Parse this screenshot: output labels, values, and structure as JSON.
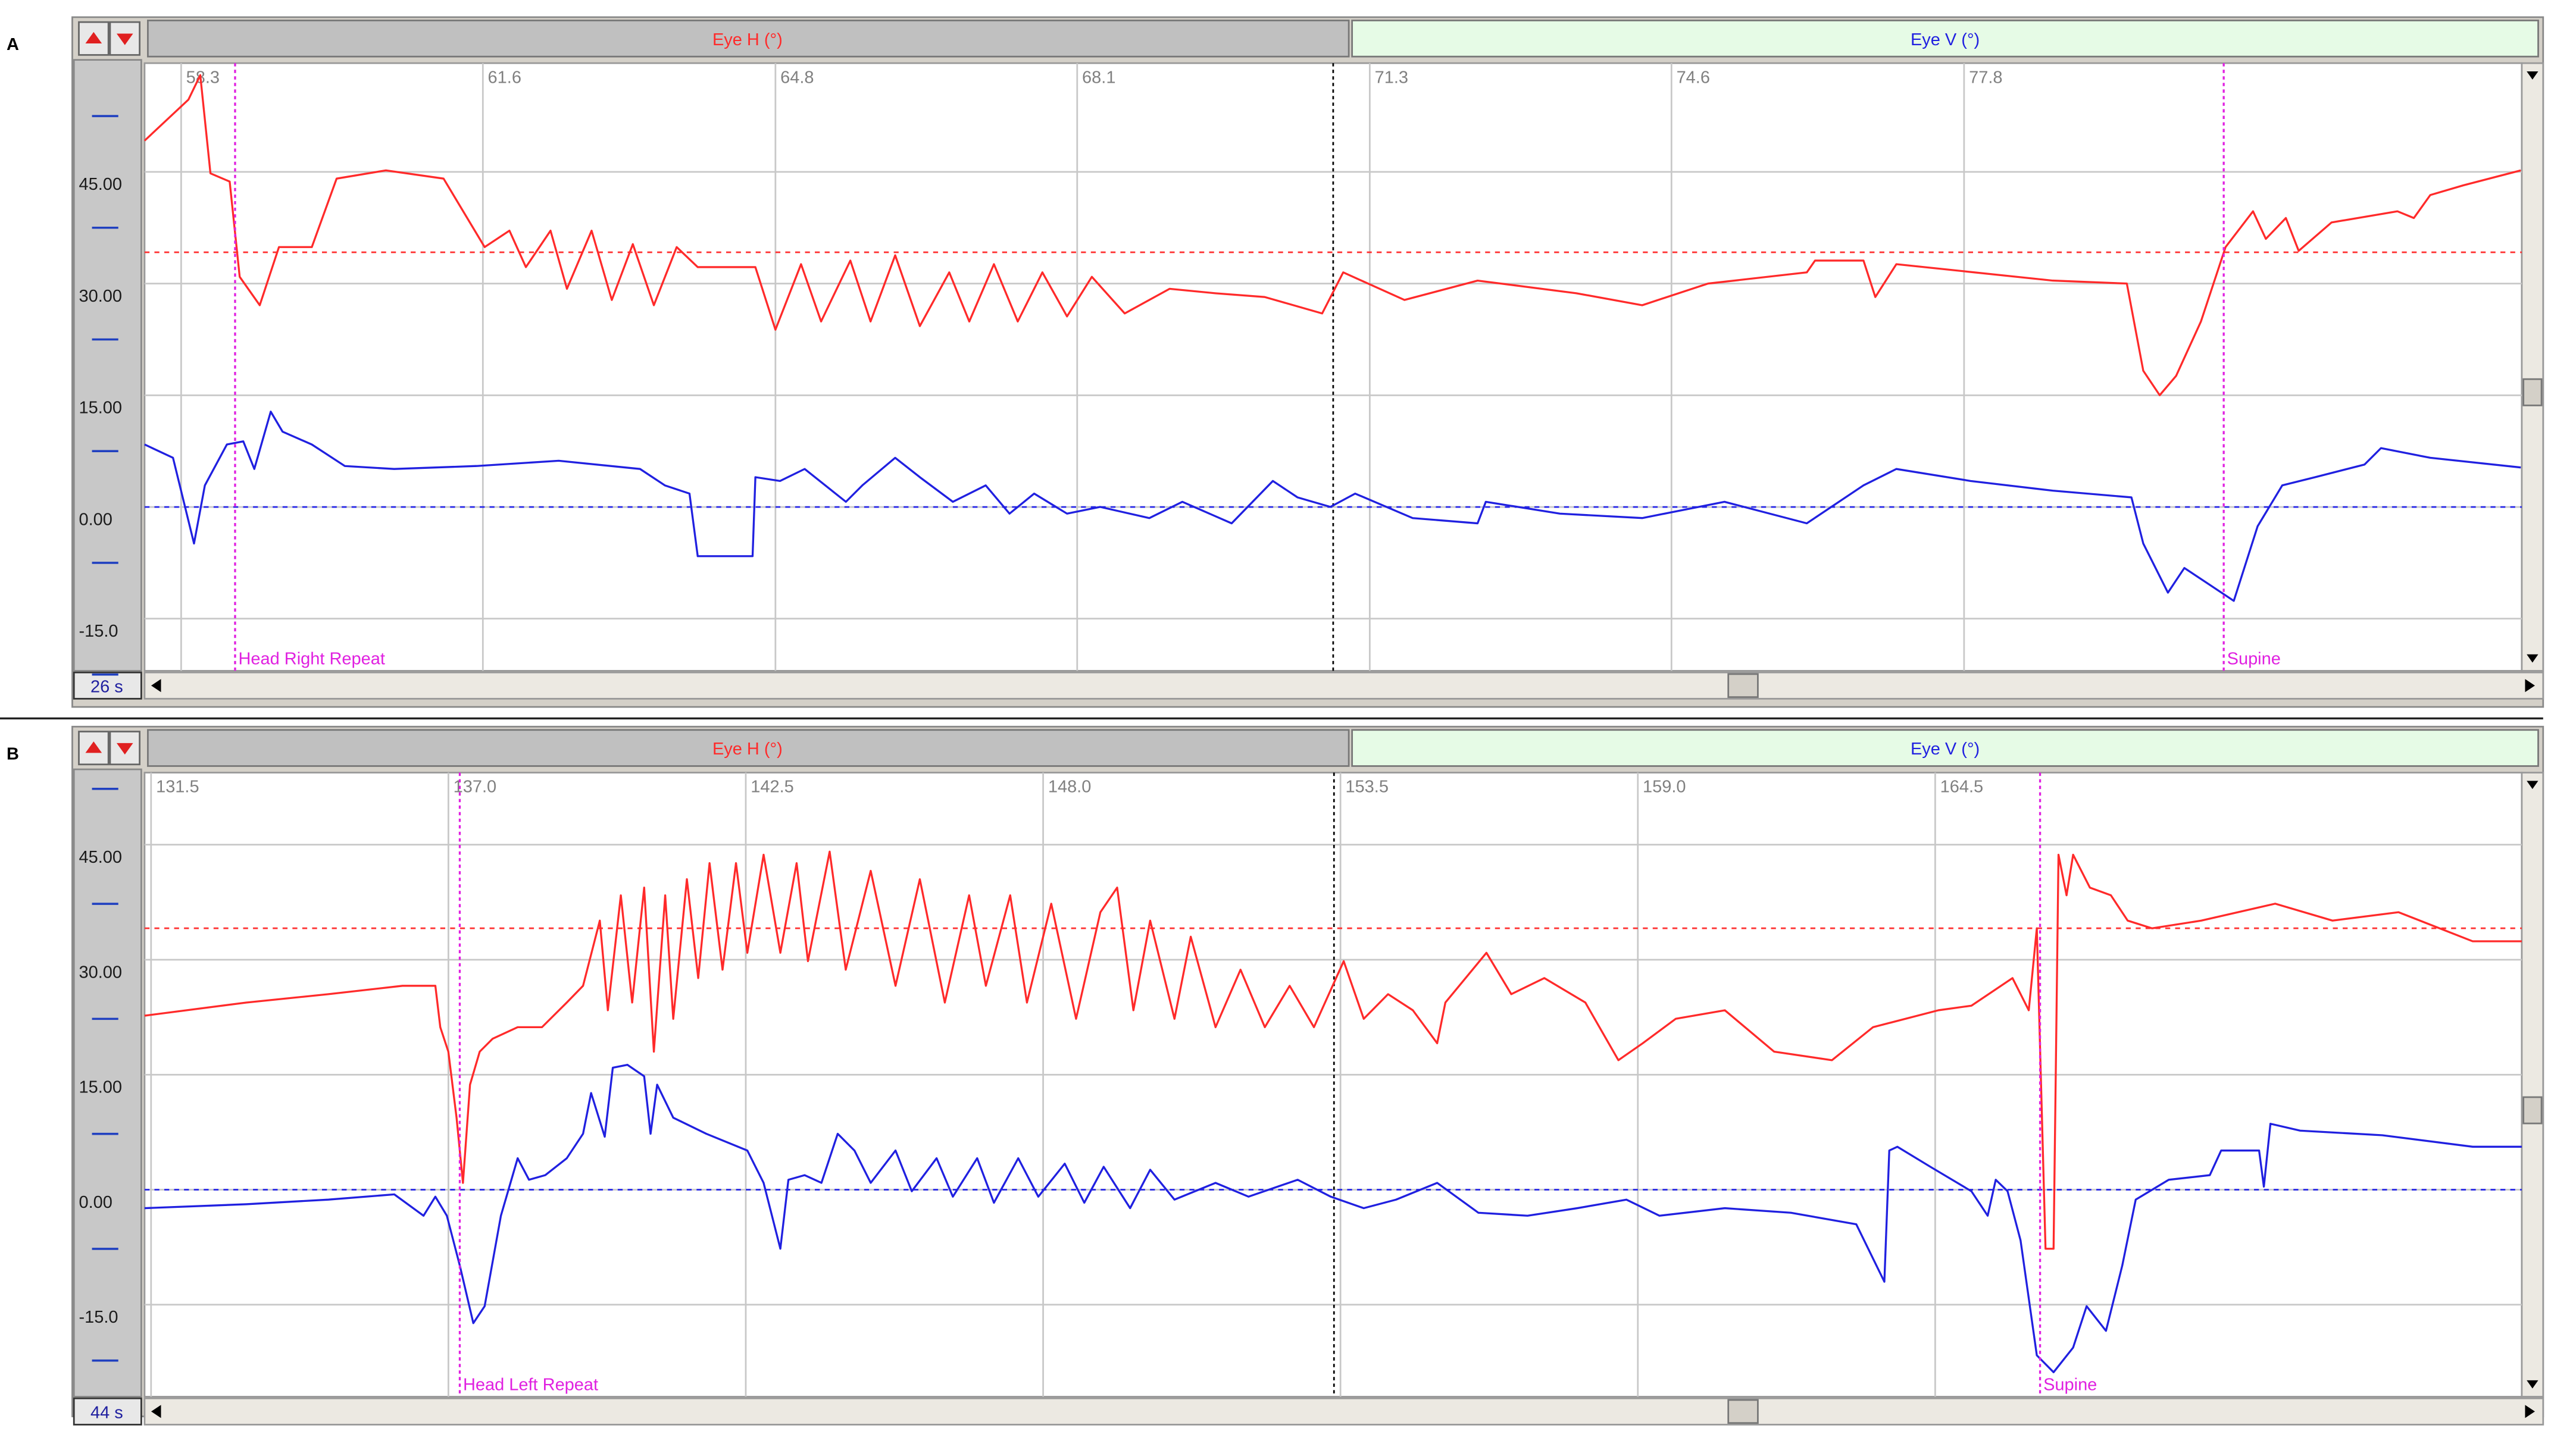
{
  "panels": [
    {
      "label": "A",
      "header": {
        "left": "Eye H (°)",
        "right": "Eye V (°)"
      },
      "duration": "26 s",
      "xlim": [
        57.9,
        83.9
      ],
      "ylim": [
        -22,
        59.6
      ],
      "xticks": [
        58.3,
        61.6,
        64.8,
        68.1,
        71.3,
        74.6,
        77.8
      ],
      "yticks": [
        {
          "value": 45,
          "label": "45.00"
        },
        {
          "value": 30,
          "label": "30.00"
        },
        {
          "value": 15,
          "label": "15.00"
        },
        {
          "value": 0,
          "label": "0.00"
        },
        {
          "value": -15,
          "label": "-15.0"
        }
      ],
      "grid": true,
      "cursor": 70.9,
      "markers": [
        {
          "x": 58.89,
          "label": "Head Right Repeat",
          "color": "#e020e0"
        },
        {
          "x": 80.64,
          "label": "Supine",
          "color": "#e020e0"
        }
      ],
      "references": [
        {
          "value": 34.2,
          "color": "#ff3030"
        },
        {
          "value": 0,
          "color": "#2828e8"
        }
      ],
      "traces": [
        {
          "color": "#ff2a2a",
          "x": [
            57.9,
            58.38,
            58.51,
            58.62,
            58.83,
            58.94,
            59.16,
            59.37,
            59.73,
            60.0,
            60.54,
            61.17,
            61.62,
            61.89,
            62.07,
            62.34,
            62.52,
            62.79,
            63.01,
            63.24,
            63.47,
            63.72,
            63.95,
            64.58,
            64.8,
            65.08,
            65.3,
            65.62,
            65.84,
            66.11,
            66.38,
            66.7,
            66.92,
            67.19,
            67.45,
            67.72,
            67.99,
            68.26,
            68.62,
            69.11,
            69.61,
            70.15,
            70.78,
            71.01,
            71.68,
            72.48,
            73.56,
            74.28,
            75.0,
            76.08,
            76.17,
            76.7,
            76.83,
            77.06,
            78.77,
            79.58,
            79.76,
            79.94,
            80.12,
            80.39,
            80.66,
            80.96,
            81.1,
            81.32,
            81.46,
            81.82,
            82.54,
            82.72,
            82.9,
            83.26,
            83.89
          ],
          "values": [
            49.2,
            54.7,
            58.0,
            44.8,
            43.7,
            30.9,
            27.1,
            34.9,
            34.9,
            44.1,
            45.2,
            44.1,
            34.9,
            37.1,
            32.2,
            37.1,
            29.3,
            37.1,
            27.8,
            35.3,
            27.1,
            34.9,
            32.2,
            32.2,
            23.8,
            32.6,
            24.9,
            33.1,
            24.9,
            33.8,
            24.3,
            31.5,
            24.9,
            32.6,
            24.9,
            31.5,
            25.6,
            30.9,
            26.0,
            29.3,
            28.7,
            28.2,
            26.0,
            31.5,
            27.8,
            30.4,
            28.7,
            27.1,
            30.0,
            31.5,
            33.1,
            33.1,
            28.2,
            32.6,
            30.4,
            30.0,
            18.3,
            15.0,
            17.6,
            24.9,
            34.9,
            39.7,
            36.0,
            38.8,
            34.4,
            38.2,
            39.7,
            38.8,
            41.9,
            43.2,
            45.2
          ]
        },
        {
          "color": "#2020e0",
          "x": [
            57.9,
            58.21,
            58.44,
            58.56,
            58.8,
            58.98,
            59.1,
            59.28,
            59.41,
            59.73,
            60.09,
            60.63,
            61.53,
            62.43,
            63.32,
            63.59,
            63.86,
            63.95,
            64.55,
            64.58,
            64.85,
            65.12,
            65.57,
            65.75,
            66.11,
            66.38,
            66.74,
            67.1,
            67.36,
            67.63,
            67.99,
            68.35,
            68.89,
            69.25,
            69.79,
            70.24,
            70.51,
            70.87,
            71.14,
            71.77,
            72.48,
            72.57,
            73.38,
            74.28,
            75.18,
            76.08,
            76.7,
            77.06,
            77.87,
            78.77,
            79.63,
            79.76,
            80.03,
            80.21,
            80.48,
            80.75,
            81.01,
            81.28,
            81.64,
            82.18,
            82.36,
            82.9,
            83.89
          ],
          "values": [
            8.4,
            6.6,
            -4.9,
            2.9,
            8.4,
            8.8,
            5.1,
            12.8,
            10.1,
            8.4,
            5.5,
            5.1,
            5.5,
            6.2,
            5.1,
            2.9,
            1.8,
            -6.6,
            -6.6,
            4.0,
            3.5,
            5.1,
            0.7,
            2.9,
            6.6,
            4.0,
            0.7,
            2.9,
            -0.9,
            1.8,
            -0.9,
            0.0,
            -1.5,
            0.7,
            -2.2,
            3.5,
            1.3,
            0.0,
            1.8,
            -1.5,
            -2.2,
            0.7,
            -0.9,
            -1.5,
            0.7,
            -2.2,
            2.9,
            5.1,
            3.5,
            2.2,
            1.3,
            -4.9,
            -11.5,
            -8.2,
            -10.4,
            -12.6,
            -2.6,
            2.9,
            4.0,
            5.7,
            7.9,
            6.6,
            5.3
          ]
        }
      ]
    },
    {
      "label": "B",
      "header": {
        "left": "Eye H (°)",
        "right": "Eye V (°)"
      },
      "duration": "44 s",
      "xlim": [
        131.38,
        175.35
      ],
      "ylim": [
        -27,
        54.4
      ],
      "xticks": [
        131.5,
        {
          "value": 137,
          "label": "137.0"
        },
        142.5,
        {
          "value": 148,
          "label": "148.0"
        },
        153.5,
        {
          "value": 159,
          "label": "159.0"
        },
        164.5
      ],
      "yticks": [
        {
          "value": 45,
          "label": "45.00"
        },
        {
          "value": 30,
          "label": "30.00"
        },
        {
          "value": 15,
          "label": "15.00"
        },
        {
          "value": 0,
          "label": "0.00"
        },
        {
          "value": -15,
          "label": "-15.0"
        }
      ],
      "grid": true,
      "cursor": 153.38,
      "markers": [
        {
          "x": 137.21,
          "label": "Head Left Repeat",
          "color": "#e020e0"
        },
        {
          "x": 166.44,
          "label": "Supine",
          "color": "#e020e0"
        }
      ],
      "references": [
        {
          "value": 34.1,
          "color": "#ff3030"
        },
        {
          "value": 0,
          "color": "#2828e8"
        }
      ],
      "traces": [
        {
          "color": "#ff2a2a",
          "x": [
            131.38,
            133.26,
            134.78,
            136.15,
            136.76,
            136.85,
            137.0,
            137.15,
            137.27,
            137.4,
            137.58,
            137.82,
            138.28,
            138.73,
            139.19,
            139.49,
            139.8,
            139.95,
            140.19,
            140.4,
            140.62,
            140.8,
            141.01,
            141.16,
            141.41,
            141.62,
            141.83,
            142.07,
            142.32,
            142.53,
            142.83,
            143.14,
            143.44,
            143.65,
            144.05,
            144.35,
            144.81,
            145.27,
            145.72,
            146.18,
            146.63,
            146.94,
            147.39,
            147.7,
            148.15,
            148.61,
            149.06,
            149.37,
            149.67,
            149.98,
            150.43,
            150.73,
            151.19,
            151.65,
            152.1,
            152.56,
            153.01,
            153.56,
            153.93,
            154.38,
            154.84,
            155.29,
            155.44,
            156.2,
            156.66,
            157.27,
            158.03,
            158.64,
            159.09,
            159.7,
            160.61,
            161.52,
            162.59,
            163.35,
            164.56,
            165.17,
            165.93,
            166.23,
            166.38,
            166.54,
            166.69,
            166.78,
            166.93,
            167.05,
            167.36,
            167.75,
            168.06,
            168.51,
            169.42,
            170.79,
            171.85,
            173.07,
            174.44,
            175.35
          ],
          "values": [
            22.7,
            24.4,
            25.5,
            26.6,
            26.6,
            21.2,
            18.0,
            9.4,
            0.9,
            13.7,
            18.0,
            19.7,
            21.2,
            21.2,
            24.4,
            26.6,
            35.1,
            23.4,
            38.4,
            24.4,
            39.4,
            18.0,
            38.4,
            22.3,
            40.5,
            27.6,
            42.6,
            28.7,
            42.6,
            30.9,
            43.7,
            30.9,
            42.6,
            29.8,
            44.1,
            28.7,
            41.6,
            26.6,
            40.5,
            24.4,
            38.4,
            26.6,
            38.4,
            24.4,
            37.3,
            22.3,
            36.2,
            39.4,
            23.4,
            35.1,
            22.3,
            33.0,
            21.2,
            28.7,
            21.2,
            26.6,
            21.2,
            29.8,
            22.3,
            25.5,
            23.4,
            19.1,
            24.4,
            30.9,
            25.5,
            27.6,
            24.4,
            16.9,
            19.1,
            22.3,
            23.4,
            18.0,
            16.9,
            21.2,
            23.4,
            24.0,
            27.6,
            23.4,
            34.1,
            -7.7,
            -7.7,
            43.7,
            38.4,
            43.7,
            39.4,
            38.4,
            35.1,
            34.1,
            35.1,
            37.3,
            35.1,
            36.2,
            32.4,
            32.4
          ]
        },
        {
          "color": "#2020e0",
          "x": [
            131.38,
            133.26,
            134.78,
            136.0,
            136.54,
            136.76,
            136.97,
            137.21,
            137.46,
            137.67,
            137.97,
            138.28,
            138.49,
            138.79,
            139.19,
            139.49,
            139.64,
            139.89,
            140.04,
            140.31,
            140.62,
            140.74,
            140.86,
            141.16,
            141.77,
            142.53,
            142.83,
            143.14,
            143.29,
            143.59,
            143.9,
            144.2,
            144.51,
            144.81,
            145.27,
            145.57,
            146.03,
            146.33,
            146.78,
            147.09,
            147.54,
            147.91,
            148.4,
            148.76,
            149.12,
            149.61,
            149.98,
            150.43,
            151.19,
            151.8,
            152.71,
            153.32,
            153.93,
            154.53,
            155.29,
            156.05,
            156.96,
            157.88,
            158.79,
            159.4,
            160.61,
            161.83,
            163.04,
            163.56,
            163.65,
            163.8,
            164.41,
            165.17,
            165.47,
            165.62,
            165.84,
            166.08,
            166.38,
            166.69,
            167.05,
            167.3,
            167.66,
            167.96,
            168.21,
            168.82,
            169.58,
            169.79,
            170.49,
            170.58,
            170.7,
            171.25,
            172.77,
            174.44,
            175.35
          ],
          "values": [
            -2.4,
            -1.9,
            -1.3,
            -0.6,
            -3.4,
            -0.9,
            -3.4,
            -9.9,
            -17.4,
            -15.2,
            -3.4,
            4.1,
            1.3,
            1.9,
            4.1,
            7.3,
            12.6,
            6.9,
            15.9,
            16.3,
            14.8,
            7.3,
            13.7,
            9.4,
            7.3,
            5.1,
            0.9,
            -7.7,
            1.3,
            1.9,
            0.9,
            7.3,
            5.1,
            0.9,
            5.1,
            -0.2,
            4.1,
            -0.9,
            4.1,
            -1.7,
            4.1,
            -0.9,
            3.4,
            -1.7,
            3.0,
            -2.4,
            2.6,
            -1.3,
            0.9,
            -0.9,
            1.3,
            -0.9,
            -2.4,
            -1.3,
            0.9,
            -3.0,
            -3.4,
            -2.4,
            -1.3,
            -3.4,
            -2.4,
            -3.0,
            -4.5,
            -12.0,
            5.1,
            5.6,
            3.0,
            -0.2,
            -3.4,
            1.3,
            -0.2,
            -6.6,
            -21.6,
            -23.8,
            -20.6,
            -15.2,
            -18.4,
            -9.9,
            -1.3,
            1.3,
            1.9,
            5.1,
            5.1,
            0.4,
            8.6,
            7.7,
            7.1,
            5.6,
            5.6
          ]
        }
      ]
    }
  ]
}
